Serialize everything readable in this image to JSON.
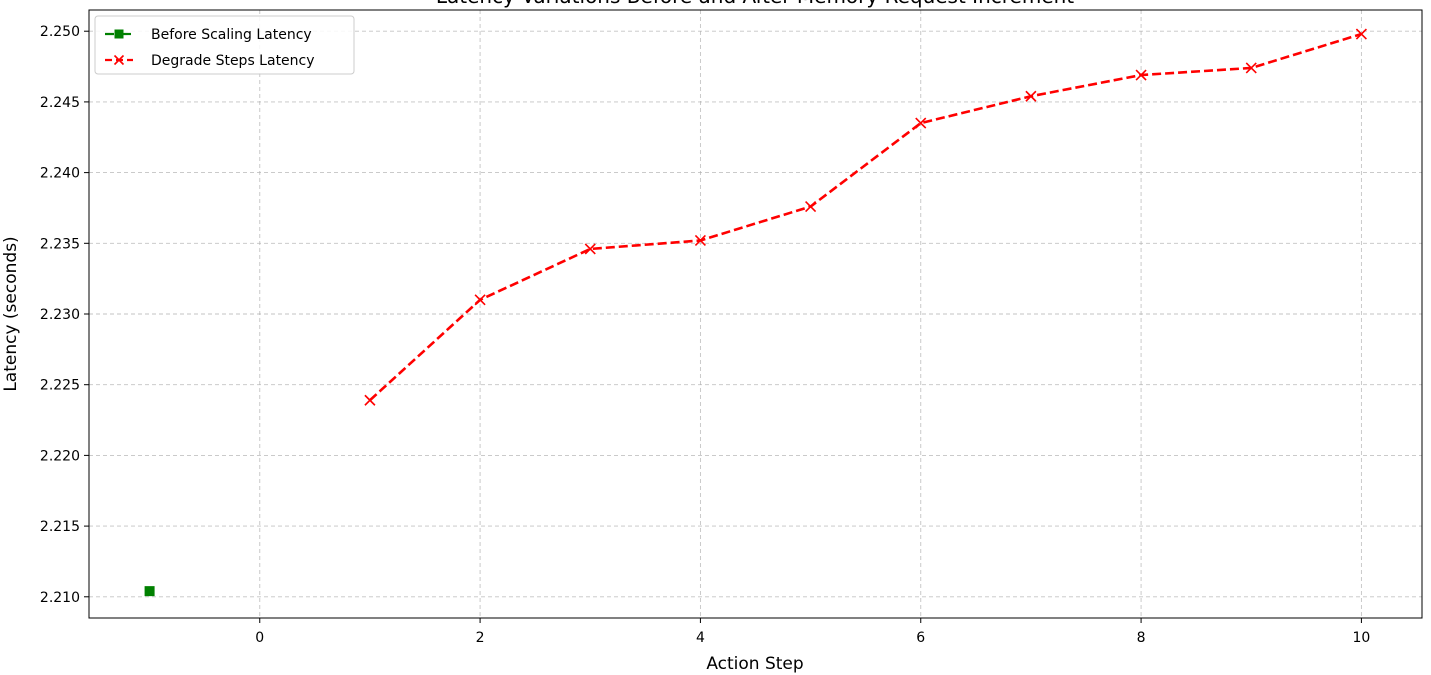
{
  "chart_data": {
    "type": "line",
    "title": "Latency Variations Before and After Memory Request Increment",
    "xlabel": "Action Step",
    "ylabel": "Latency (seconds)",
    "xlim": [
      -1.55,
      10.55
    ],
    "ylim": [
      2.2085,
      2.2515
    ],
    "xticks": [
      0,
      2,
      4,
      6,
      8,
      10
    ],
    "yticks": [
      2.21,
      2.215,
      2.22,
      2.225,
      2.23,
      2.235,
      2.24,
      2.245,
      2.25
    ],
    "grid": true,
    "legend_position": "upper left",
    "series": [
      {
        "name": "Before Scaling Latency",
        "color": "#008000",
        "marker": "square",
        "linestyle": "dashdot",
        "x": [
          -1
        ],
        "y": [
          2.2104
        ]
      },
      {
        "name": "Degrade Steps Latency",
        "color": "#ff0000",
        "marker": "x",
        "linestyle": "dashed",
        "x": [
          1,
          2,
          3,
          4,
          5,
          6,
          7,
          8,
          9,
          10
        ],
        "y": [
          2.2239,
          2.231,
          2.2346,
          2.2352,
          2.2376,
          2.2435,
          2.2454,
          2.2469,
          2.2474,
          2.2498
        ]
      }
    ]
  }
}
